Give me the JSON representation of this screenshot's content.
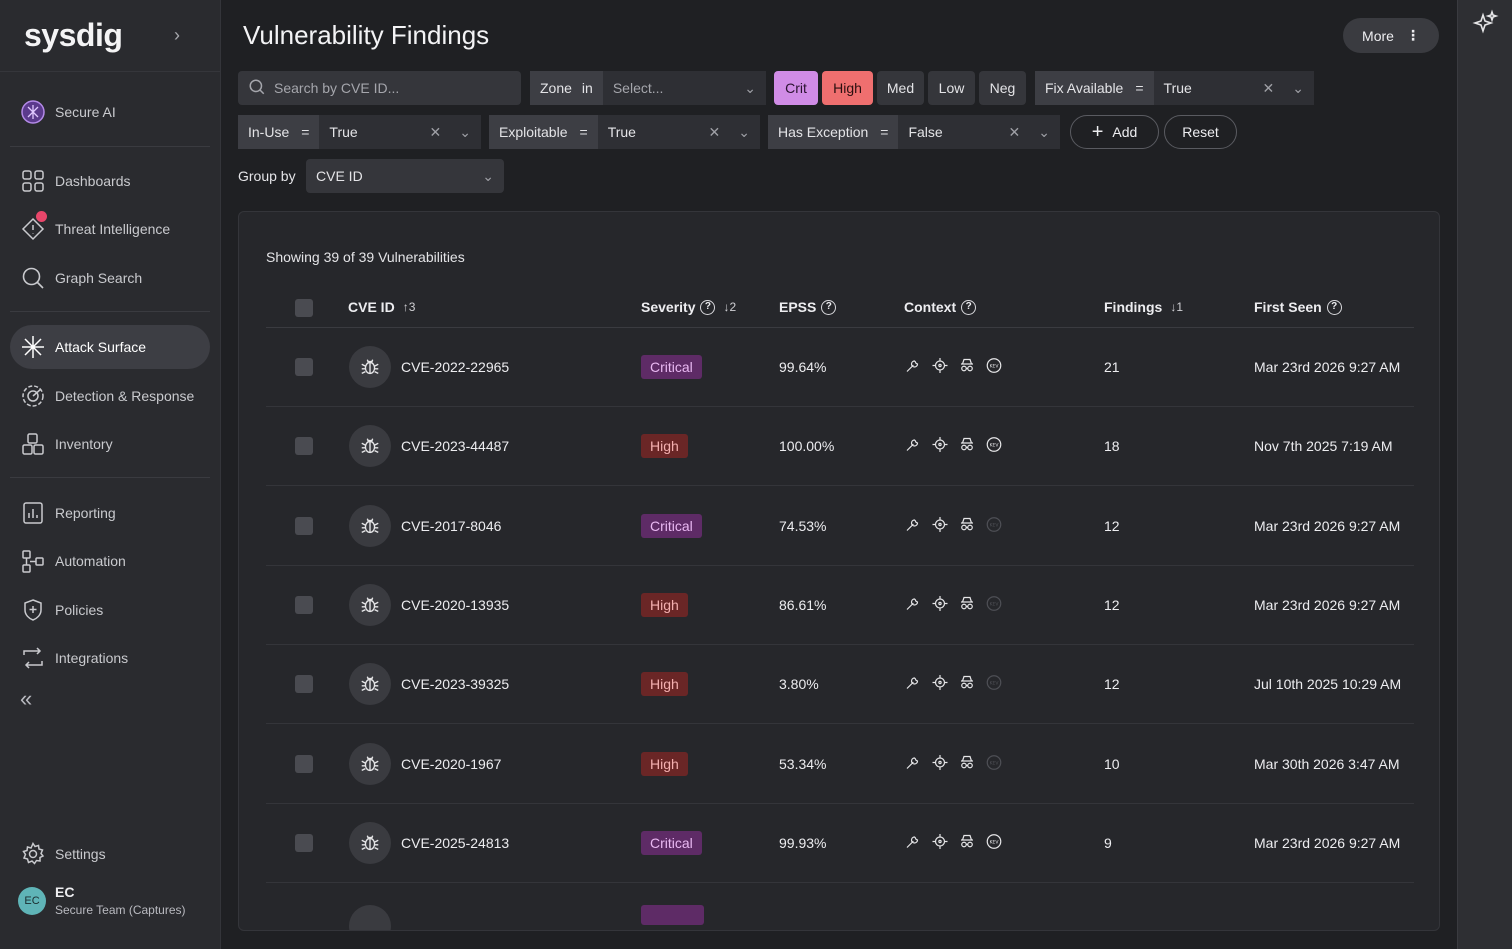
{
  "app": {
    "logo": "sysdig",
    "expand_chevron": "›"
  },
  "sidebar": {
    "items": [
      {
        "label": "Secure AI",
        "icon": "secure-ai-icon"
      },
      {
        "label": "Dashboards",
        "icon": "dashboards-icon"
      },
      {
        "label": "Threat Intelligence",
        "icon": "threat-intelligence-icon",
        "notification": true
      },
      {
        "label": "Graph Search",
        "icon": "search-icon"
      },
      {
        "label": "Attack Surface",
        "icon": "attack-surface-icon",
        "active": true
      },
      {
        "label": "Detection & Response",
        "icon": "detection-icon"
      },
      {
        "label": "Inventory",
        "icon": "inventory-icon"
      },
      {
        "label": "Reporting",
        "icon": "reporting-icon"
      },
      {
        "label": "Automation",
        "icon": "automation-icon"
      },
      {
        "label": "Policies",
        "icon": "policies-icon"
      },
      {
        "label": "Integrations",
        "icon": "integrations-icon"
      }
    ],
    "collapse_glyph": "«",
    "settings_label": "Settings",
    "user": {
      "initials": "EC",
      "name": "EC",
      "team": "Secure Team (Captures)"
    }
  },
  "header": {
    "title": "Vulnerability Findings",
    "more_label": "More",
    "more_dots": "⋮"
  },
  "filters": {
    "search_placeholder": "Search by CVE ID...",
    "zone": {
      "field": "Zone",
      "op": "in",
      "value": "Select..."
    },
    "severity": [
      "Crit",
      "High",
      "Med",
      "Low",
      "Neg"
    ],
    "fix_available": {
      "field": "Fix Available",
      "op": "=",
      "value": "True"
    },
    "in_use": {
      "field": "In-Use",
      "op": "=",
      "value": "True"
    },
    "exploitable": {
      "field": "Exploitable",
      "op": "=",
      "value": "True"
    },
    "has_exception": {
      "field": "Has Exception",
      "op": "=",
      "value": "False"
    },
    "add_label": "Add",
    "reset_label": "Reset",
    "clear_glyph": "✕",
    "chevron_glyph": "⌄"
  },
  "group_by": {
    "label": "Group by",
    "value": "CVE ID"
  },
  "table": {
    "showing": "Showing 39 of 39 Vulnerabilities",
    "columns": {
      "cve_id": "CVE ID",
      "cve_sort": "↑3",
      "severity": "Severity",
      "severity_sort": "↓2",
      "epss": "EPSS",
      "context": "Context",
      "findings": "Findings",
      "findings_sort": "↓1",
      "first_seen": "First Seen"
    },
    "help_glyph": "?",
    "rows": [
      {
        "cve": "CVE-2022-22965",
        "severity": "Critical",
        "epss": "99.64%",
        "kev": true,
        "findings": "21",
        "first_seen": "Mar 23rd 2026 9:27 AM"
      },
      {
        "cve": "CVE-2023-44487",
        "severity": "High",
        "epss": "100.00%",
        "kev": true,
        "findings": "18",
        "first_seen": "Nov 7th 2025 7:19 AM"
      },
      {
        "cve": "CVE-2017-8046",
        "severity": "Critical",
        "epss": "74.53%",
        "kev": false,
        "findings": "12",
        "first_seen": "Mar 23rd 2026 9:27 AM"
      },
      {
        "cve": "CVE-2020-13935",
        "severity": "High",
        "epss": "86.61%",
        "kev": false,
        "findings": "12",
        "first_seen": "Mar 23rd 2026 9:27 AM"
      },
      {
        "cve": "CVE-2023-39325",
        "severity": "High",
        "epss": "3.80%",
        "kev": false,
        "findings": "12",
        "first_seen": "Jul 10th 2025 10:29 AM"
      },
      {
        "cve": "CVE-2020-1967",
        "severity": "High",
        "epss": "53.34%",
        "kev": false,
        "findings": "10",
        "first_seen": "Mar 30th 2026 3:47 AM"
      },
      {
        "cve": "CVE-2025-24813",
        "severity": "Critical",
        "epss": "99.93%",
        "kev": true,
        "findings": "9",
        "first_seen": "Mar 23rd 2026 9:27 AM"
      }
    ]
  },
  "colors": {
    "critical_bg": "#5e2b66",
    "high_bg": "#6a2626",
    "crit_chip": "#d08ce6",
    "high_chip": "#ef6f6f"
  }
}
